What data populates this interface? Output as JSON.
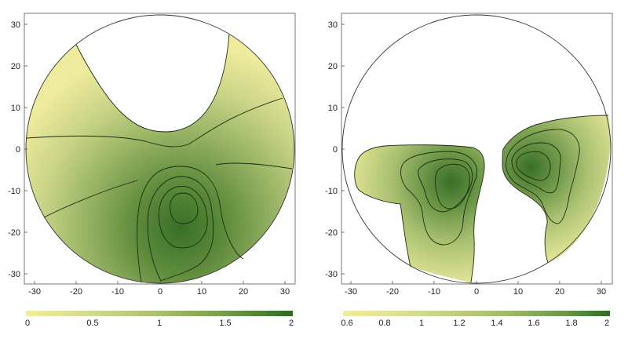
{
  "colors": {
    "low": "#f0ee9c",
    "high": "#2f6a24",
    "circle": "#333333",
    "contour": "#1d2d10"
  },
  "chart_data": [
    {
      "type": "heatmap",
      "title": "",
      "xlabel": "",
      "ylabel": "",
      "xlim": [
        -33,
        33
      ],
      "ylim": [
        -33,
        33
      ],
      "xticks": [
        "-30",
        "-20",
        "-10",
        "0",
        "10",
        "20",
        "30"
      ],
      "yticks": [
        "30",
        "20",
        "10",
        "0",
        "-10",
        "-20",
        "-30"
      ],
      "domain": "circle of radius 32 centred at (0, 0)",
      "blank_region": "top of circle, bounded below near y = 4",
      "peak": {
        "x": 5,
        "y": -19,
        "value": 2.0
      },
      "colorbar": {
        "min": 0,
        "max": 2,
        "tick_labels": [
          "0",
          "0.5",
          "1",
          "1.5",
          "2"
        ]
      }
    },
    {
      "type": "heatmap",
      "title": "",
      "xlabel": "",
      "ylabel": "",
      "xlim": [
        -33,
        33
      ],
      "ylim": [
        -33,
        33
      ],
      "xticks": [
        "-30",
        "-20",
        "-10",
        "0",
        "10",
        "20",
        "30"
      ],
      "yticks": [
        "30",
        "20",
        "10",
        "0",
        "-10",
        "-20",
        "-30"
      ],
      "domain": "circle of radius 32 centred at (0, 0)",
      "regions": [
        {
          "name": "left lobe",
          "peak": {
            "x": -8,
            "y": -8,
            "value": 2.0
          }
        },
        {
          "name": "right lobe",
          "peak": {
            "x": 13,
            "y": -5,
            "value": 2.0
          }
        }
      ],
      "colorbar": {
        "min": 0.6,
        "max": 2,
        "tick_labels": [
          "0.6",
          "0.8",
          "1",
          "1.2",
          "1.4",
          "1.6",
          "1.8",
          "2"
        ]
      }
    }
  ]
}
